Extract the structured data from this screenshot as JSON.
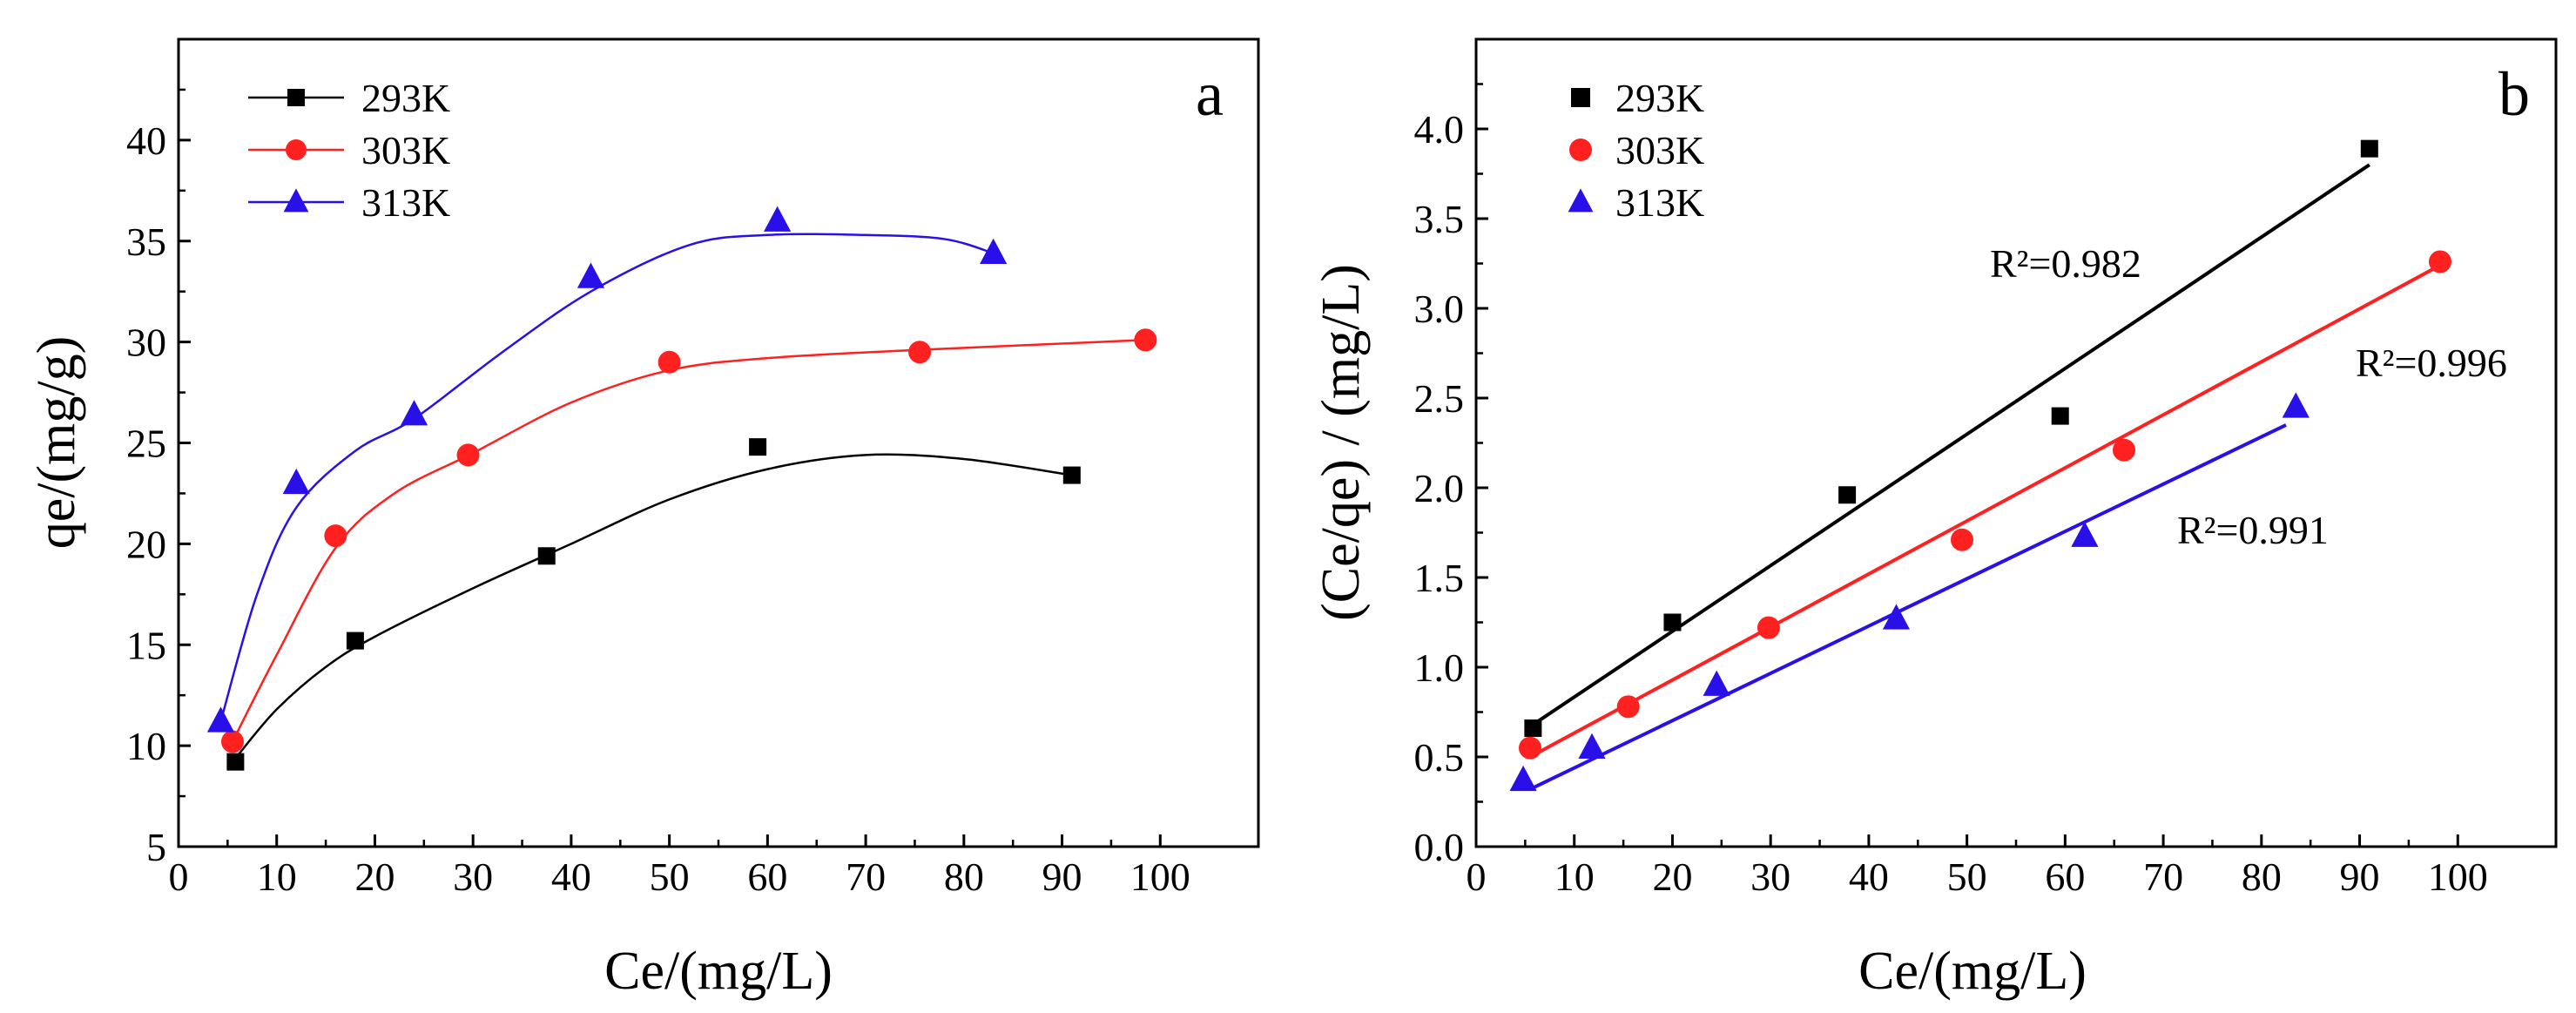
{
  "chart_data": [
    {
      "type": "scatter",
      "panel_label": "a",
      "xlabel": "Ce/(mg/L)",
      "ylabel": "qe/(mg/g)",
      "xlim": [
        0,
        110
      ],
      "ylim": [
        5,
        45
      ],
      "xticks": [
        "0",
        "10",
        "20",
        "30",
        "40",
        "50",
        "60",
        "70",
        "80",
        "90",
        "100"
      ],
      "yticks": [
        "5",
        "10",
        "15",
        "20",
        "25",
        "30",
        "35",
        "40"
      ],
      "legend_position": "top-left",
      "series": [
        {
          "name": "293K",
          "marker": "square",
          "color": "#000000",
          "x": [
            5.8,
            18.0,
            37.5,
            59.0,
            91.0
          ],
          "y": [
            9.2,
            15.2,
            19.4,
            24.8,
            23.4
          ],
          "fit": [
            [
              6,
              9.5
            ],
            [
              10,
              11.8
            ],
            [
              15,
              13.9
            ],
            [
              20,
              15.4
            ],
            [
              30,
              17.8
            ],
            [
              40,
              20.0
            ],
            [
              50,
              22.2
            ],
            [
              60,
              23.7
            ],
            [
              70,
              24.4
            ],
            [
              80,
              24.2
            ],
            [
              91,
              23.4
            ]
          ]
        },
        {
          "name": "303K",
          "marker": "circle",
          "color": "#ff2020",
          "x": [
            5.5,
            16.0,
            29.5,
            50.0,
            75.5,
            98.5
          ],
          "y": [
            10.2,
            20.4,
            24.4,
            29.0,
            29.5,
            30.1
          ],
          "fit": [
            [
              5.5,
              10.2
            ],
            [
              10,
              14.5
            ],
            [
              16,
              19.8
            ],
            [
              22,
              22.5
            ],
            [
              30,
              24.5
            ],
            [
              40,
              27.0
            ],
            [
              50,
              28.6
            ],
            [
              60,
              29.2
            ],
            [
              75,
              29.6
            ],
            [
              98.5,
              30.1
            ]
          ]
        },
        {
          "name": "313K",
          "marker": "triangle",
          "color": "#2a10e8",
          "x": [
            4.3,
            12.0,
            24.0,
            42.0,
            61.0,
            83.0
          ],
          "y": [
            11.2,
            23.0,
            26.4,
            33.2,
            36.0,
            34.4
          ],
          "fit": [
            [
              4.3,
              11.2
            ],
            [
              8,
              17.5
            ],
            [
              12,
              21.8
            ],
            [
              18,
              24.6
            ],
            [
              24,
              26.2
            ],
            [
              33,
              29.5
            ],
            [
              42,
              32.5
            ],
            [
              52,
              34.8
            ],
            [
              60,
              35.3
            ],
            [
              70,
              35.3
            ],
            [
              78,
              35.1
            ],
            [
              83,
              34.4
            ]
          ]
        }
      ]
    },
    {
      "type": "scatter",
      "panel_label": "b",
      "xlabel": "Ce/(mg/L)",
      "ylabel": "(Ce/qe) / (mg/L)",
      "xlim": [
        0,
        110
      ],
      "ylim": [
        0,
        4.5
      ],
      "xticks": [
        "0",
        "10",
        "20",
        "30",
        "40",
        "50",
        "60",
        "70",
        "80",
        "90",
        "100"
      ],
      "yticks": [
        "0.0",
        "0.5",
        "1.0",
        "1.5",
        "2.0",
        "2.5",
        "3.0",
        "3.5",
        "4.0"
      ],
      "legend_position": "top-left",
      "series": [
        {
          "name": "293K",
          "marker": "square",
          "color": "#000000",
          "x": [
            5.8,
            20.0,
            37.8,
            59.5,
            91.0
          ],
          "y": [
            0.66,
            1.25,
            1.96,
            2.4,
            3.89
          ],
          "fit_line": [
            [
              5.8,
              0.68
            ],
            [
              91.0,
              3.8
            ]
          ]
        },
        {
          "name": "303K",
          "marker": "circle",
          "color": "#ff2020",
          "x": [
            5.5,
            15.5,
            29.8,
            49.5,
            66.0,
            98.2
          ],
          "y": [
            0.55,
            0.78,
            1.22,
            1.71,
            2.21,
            3.26
          ],
          "fit_line": [
            [
              5.5,
              0.5
            ],
            [
              98.2,
              3.24
            ]
          ]
        },
        {
          "name": "313K",
          "marker": "triangle",
          "color": "#2a10e8",
          "x": [
            4.8,
            11.8,
            24.5,
            42.8,
            62.0,
            83.5
          ],
          "y": [
            0.37,
            0.55,
            0.9,
            1.27,
            1.73,
            2.45
          ],
          "fit_line": [
            [
              5.5,
              0.32
            ],
            [
              82.5,
              2.35
            ]
          ]
        }
      ],
      "annotations": [
        "R²=0.982",
        "R²=0.996",
        "R²=0.991"
      ]
    }
  ]
}
